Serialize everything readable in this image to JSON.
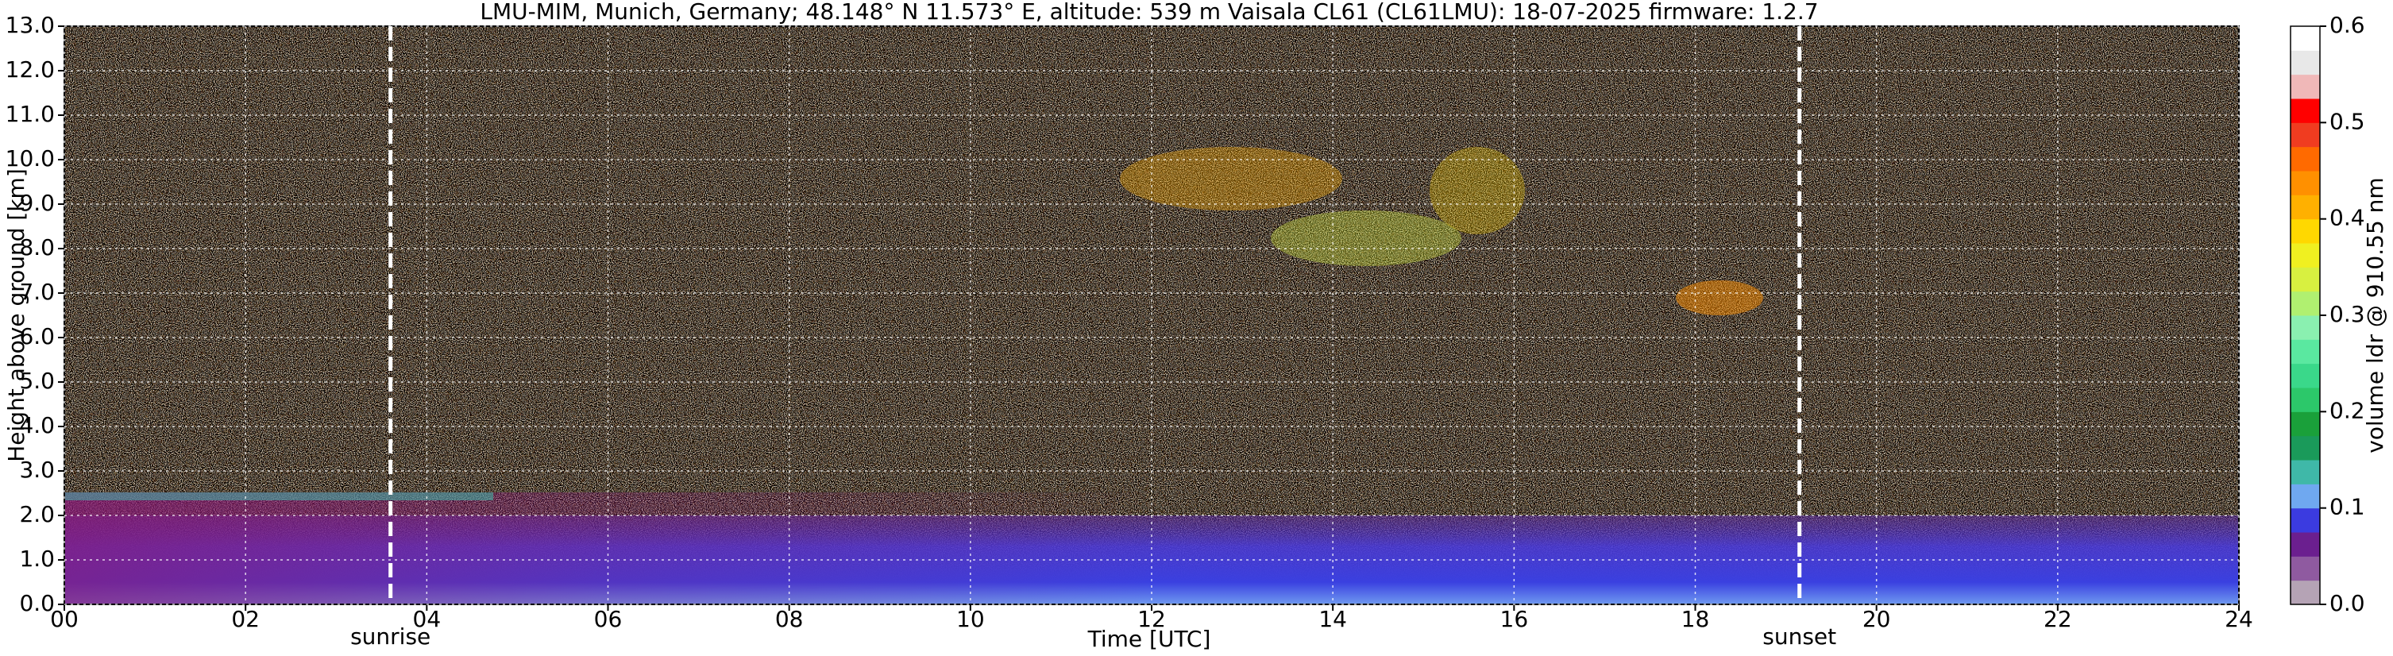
{
  "chart_data": {
    "type": "heatmap",
    "title": "LMU-MIM, Munich, Germany; 48.148° N 11.573° E, altitude: 539 m    Vaisala CL61 (CL61LMU): 18-07-2025    firmware: 1.2.7",
    "x_label": "Time [UTC]",
    "y_label": "Height above ground [km]",
    "xlim": [
      0,
      24
    ],
    "xticks": [
      {
        "value": 0,
        "label": "00"
      },
      {
        "value": 2,
        "label": "02"
      },
      {
        "value": 4,
        "label": "04"
      },
      {
        "value": 6,
        "label": "06"
      },
      {
        "value": 8,
        "label": "08"
      },
      10,
      12,
      14,
      16,
      18,
      20,
      22,
      24
    ],
    "ylim": [
      0,
      13
    ],
    "yticks": [
      {
        "value": 0,
        "label": "0.0"
      },
      {
        "value": 1,
        "label": "1.0"
      },
      {
        "value": 2,
        "label": "2.0"
      },
      {
        "value": 3,
        "label": "3.0"
      },
      {
        "value": 4,
        "label": "4.0"
      },
      {
        "value": 5,
        "label": "5.0"
      },
      {
        "value": 6,
        "label": "6.0"
      },
      {
        "value": 7,
        "label": "7.0"
      },
      {
        "value": 8,
        "label": "8.0"
      },
      {
        "value": 9,
        "label": "9.0"
      },
      {
        "value": 10,
        "label": "10.0"
      },
      {
        "value": 11,
        "label": "11.0"
      },
      {
        "value": 12,
        "label": "12.0"
      },
      {
        "value": 13,
        "label": "13.0"
      }
    ],
    "grid": true,
    "annotations": [
      {
        "text": "sunrise",
        "x": 3.6
      },
      {
        "text": "sunset",
        "x": 19.15
      }
    ],
    "colorbar": {
      "label": "volume ldr @ 910.55 nm",
      "lim": [
        0,
        0.6
      ],
      "ticks": [
        {
          "value": 0,
          "label": "0.0"
        },
        0.1,
        0.2,
        0.3,
        0.4,
        0.5,
        0.6
      ],
      "colors": [
        "#b5a3b5",
        "#8f5aa0",
        "#6b1f8f",
        "#3b3be0",
        "#6fa8f0",
        "#3fb8a8",
        "#1a9a5a",
        "#1aa03a",
        "#2cc86a",
        "#3ad88a",
        "#5ae8a0",
        "#8af0b0",
        "#b0f070",
        "#d8f040",
        "#f0f020",
        "#ffd800",
        "#ffb000",
        "#ff9000",
        "#ff6a00",
        "#f03c20",
        "#ff0000",
        "#f0b8b8",
        "#e8e8e8",
        "#ffffff"
      ]
    }
  }
}
